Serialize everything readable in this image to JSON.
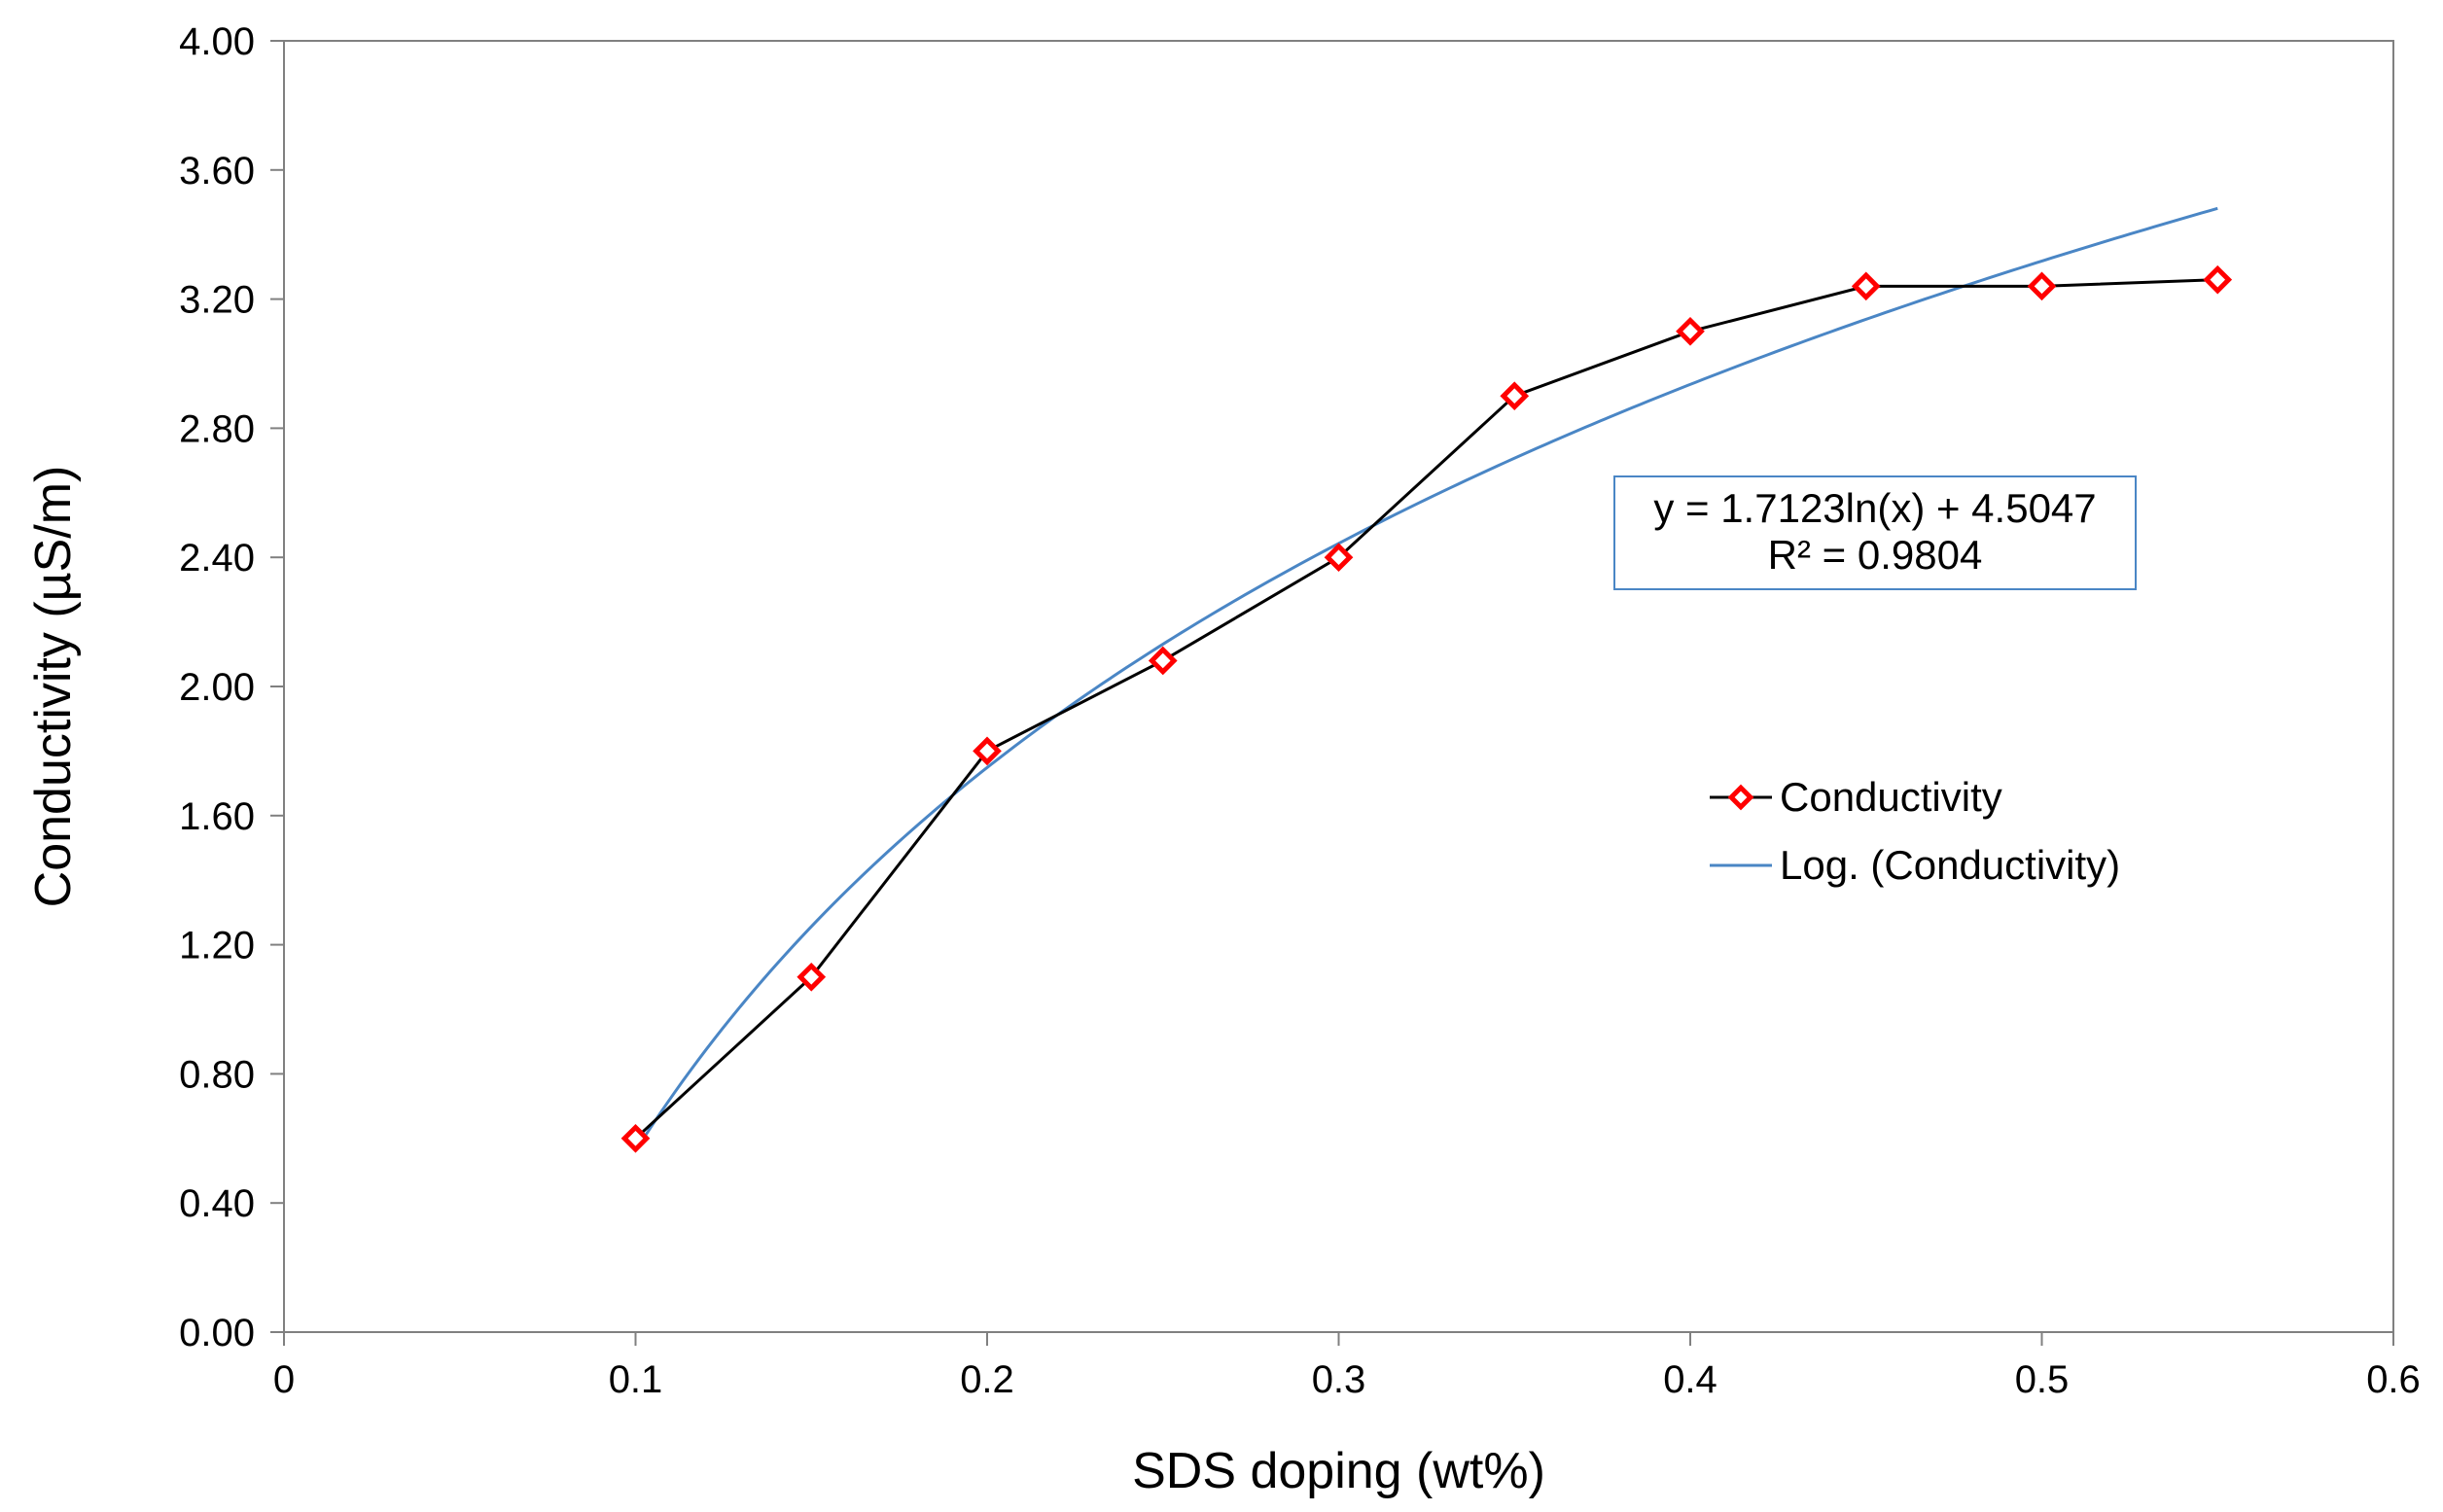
{
  "chart_data": {
    "type": "scatter",
    "title": "",
    "xlabel": "SDS doping (wt%)",
    "ylabel": "Conductivity (µS/m)",
    "xlim": [
      0,
      0.6
    ],
    "ylim": [
      0,
      4.0
    ],
    "x_ticks": [
      "0",
      "0.1",
      "0.2",
      "0.3",
      "0.4",
      "0.5",
      "0.6"
    ],
    "y_ticks": [
      "0.00",
      "0.40",
      "0.80",
      "1.20",
      "1.60",
      "2.00",
      "2.40",
      "2.80",
      "3.20",
      "3.60",
      "4.00"
    ],
    "grid": false,
    "series": [
      {
        "name": "Conductivity",
        "x": [
          0.1,
          0.15,
          0.2,
          0.25,
          0.3,
          0.35,
          0.4,
          0.45,
          0.5,
          0.55
        ],
        "y": [
          0.6,
          1.1,
          1.8,
          2.08,
          2.4,
          2.9,
          3.1,
          3.24,
          3.24,
          3.26
        ],
        "line_color": "#000000",
        "marker": "diamond",
        "marker_color": "#ff0000"
      }
    ],
    "trendline": {
      "name": "Log. (Conductivity)",
      "type": "logarithmic",
      "a": 1.7123,
      "b": 4.5047,
      "x_range": [
        0.1,
        0.55
      ],
      "color": "#4a86c5",
      "equation": "y = 1.7123ln(x) + 4.5047",
      "r_squared": "R² = 0.9804"
    },
    "legend": {
      "placement": "right-middle",
      "entries": [
        "Conductivity",
        "Log. (Conductivity)"
      ]
    }
  }
}
